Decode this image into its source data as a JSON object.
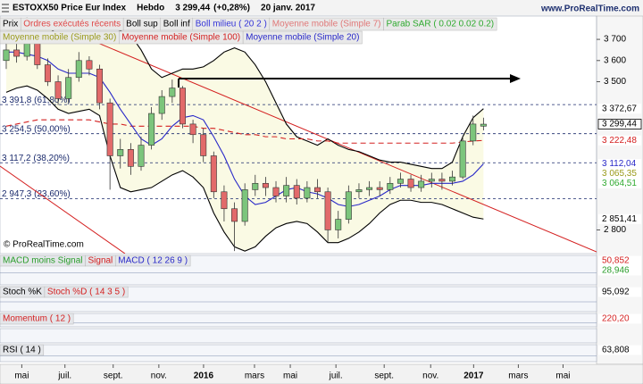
{
  "header": {
    "title": "ESTOXX50 Price Eur Index",
    "period": "Hebdo",
    "last": "3 299,44",
    "change": "(+0,28%)",
    "date": "20 janv. 2017",
    "site": "www.ProRealTime.com",
    "copyright": "© ProRealTime.com"
  },
  "chart_data": {
    "type": "candlestick",
    "open": [
      3600,
      3650,
      3620,
      3680,
      3580,
      3500,
      3420,
      3520,
      3600,
      3560,
      3400,
      3150,
      3180,
      3100,
      3200,
      3350,
      3430,
      3470,
      3300,
      3250,
      3150,
      2980,
      2900,
      2840,
      2990,
      3020,
      3000,
      2960,
      3010,
      2950,
      3000,
      2980,
      2800,
      2850,
      2980,
      2990,
      3000,
      2990,
      3020,
      3040,
      3000,
      3030,
      3040,
      3030,
      3050,
      3220,
      3290
    ],
    "high": [
      3690,
      3700,
      3720,
      3700,
      3610,
      3530,
      3560,
      3640,
      3620,
      3580,
      3420,
      3230,
      3210,
      3240,
      3380,
      3460,
      3510,
      3480,
      3320,
      3280,
      3170,
      3010,
      2930,
      3020,
      3060,
      3050,
      3030,
      3050,
      3040,
      3030,
      3040,
      3000,
      2890,
      3010,
      3020,
      3030,
      3030,
      3050,
      3070,
      3060,
      3060,
      3070,
      3070,
      3080,
      3240,
      3340,
      3330
    ],
    "low": [
      3560,
      3590,
      3600,
      3560,
      3480,
      3390,
      3400,
      3500,
      3530,
      3370,
      2990,
      3090,
      3060,
      3080,
      3180,
      3320,
      3400,
      3280,
      3210,
      3120,
      2950,
      2840,
      2700,
      2820,
      2960,
      2960,
      2930,
      2930,
      2920,
      2930,
      2950,
      2740,
      2760,
      2830,
      2950,
      2960,
      2960,
      2970,
      3000,
      2980,
      2980,
      3000,
      2990,
      3010,
      3040,
      3200,
      3270
    ],
    "close": [
      3650,
      3620,
      3680,
      3580,
      3500,
      3420,
      3520,
      3600,
      3560,
      3400,
      3150,
      3180,
      3100,
      3200,
      3350,
      3430,
      3470,
      3300,
      3250,
      3150,
      2980,
      2900,
      2840,
      2990,
      3020,
      3000,
      2960,
      3010,
      2950,
      3000,
      2980,
      2800,
      2850,
      2980,
      2990,
      3000,
      2990,
      3020,
      3040,
      3000,
      3030,
      3040,
      3030,
      3050,
      3220,
      3300,
      3299.44
    ],
    "up_color": "#7cc57c",
    "down_color": "#e26a6a",
    "series": [
      {
        "name": "Prix",
        "color": "#000000"
      },
      {
        "name": "Ordres exécutés récents",
        "color": "#e04848"
      },
      {
        "name": "Boll sup",
        "color": "#000000",
        "values": [
          3780,
          3790,
          3800,
          3790,
          3760,
          3720,
          3700,
          3700,
          3690,
          3700,
          3720,
          3740,
          3720,
          3650,
          3560,
          3520,
          3540,
          3560,
          3560,
          3570,
          3600,
          3640,
          3660,
          3640,
          3580,
          3500,
          3400,
          3300,
          3240,
          3220,
          3200,
          3230,
          3200,
          3180,
          3170,
          3150,
          3130,
          3120,
          3120,
          3110,
          3100,
          3090,
          3090,
          3120,
          3240,
          3330,
          3372.67
        ]
      },
      {
        "name": "Boll inf",
        "color": "#000000",
        "values": [
          3450,
          3470,
          3480,
          3460,
          3420,
          3370,
          3350,
          3360,
          3370,
          3340,
          3150,
          3000,
          2980,
          2990,
          3000,
          3030,
          3060,
          3080,
          3050,
          3000,
          2880,
          2790,
          2720,
          2700,
          2720,
          2770,
          2810,
          2830,
          2840,
          2830,
          2790,
          2740,
          2740,
          2760,
          2790,
          2830,
          2880,
          2920,
          2940,
          2940,
          2930,
          2930,
          2920,
          2900,
          2880,
          2860,
          2851.41
        ]
      },
      {
        "name": "Boll milieu ( 20 2 )",
        "color": "#3434d8"
      },
      {
        "name": "Moyenne mobile (Simple 7)",
        "color": "#e07878"
      },
      {
        "name": "Parab SAR ( 0.02 0.02 0.2)",
        "color": "#2faa2f"
      },
      {
        "name": "Moyenne mobile (Simple 30)",
        "color": "#9a9a1a"
      },
      {
        "name": "Moyenne mobile (Simple 100)",
        "color": "#d42020",
        "dashed": true,
        "values": [
          3290,
          3300,
          3310,
          3320,
          3320,
          3320,
          3320,
          3320,
          3320,
          3310,
          3300,
          3300,
          3290,
          3290,
          3290,
          3290,
          3290,
          3290,
          3290,
          3280,
          3280,
          3270,
          3260,
          3250,
          3250,
          3240,
          3240,
          3230,
          3230,
          3230,
          3220,
          3220,
          3210,
          3210,
          3210,
          3210,
          3210,
          3210,
          3210,
          3210,
          3210,
          3210,
          3210,
          3210,
          3215,
          3220,
          3222.48
        ]
      },
      {
        "name": "Moyenne mobile (Simple 20)",
        "color": "#2828c8",
        "values": [
          3640,
          3640,
          3630,
          3620,
          3600,
          3560,
          3540,
          3540,
          3540,
          3520,
          3450,
          3370,
          3300,
          3230,
          3200,
          3230,
          3290,
          3330,
          3340,
          3320,
          3240,
          3150,
          3040,
          2960,
          2920,
          2930,
          2960,
          2990,
          3000,
          2980,
          2970,
          2950,
          2920,
          2910,
          2920,
          2940,
          2960,
          2990,
          3010,
          3010,
          3010,
          3020,
          3020,
          3020,
          3030,
          3060,
          3112.04
        ]
      }
    ],
    "xlim": [
      -0.6,
      56.9
    ],
    "xticks": [
      {
        "value": 1.5,
        "label": "mai"
      },
      {
        "value": 5.66,
        "label": "juil."
      },
      {
        "value": 10.31,
        "label": "sept."
      },
      {
        "value": 14.71,
        "label": "nov."
      },
      {
        "value": 19.02,
        "label": "2016"
      },
      {
        "value": 23.93,
        "label": "mars"
      },
      {
        "value": 27.38,
        "label": "mai"
      },
      {
        "value": 31.78,
        "label": "juil."
      },
      {
        "value": 36.43,
        "label": "sept."
      },
      {
        "value": 40.91,
        "label": "nov."
      },
      {
        "value": 45.05,
        "label": "2017"
      },
      {
        "value": 49.36,
        "label": "mars"
      },
      {
        "value": 53.67,
        "label": "mai"
      }
    ],
    "ylim": [
      2688,
      3810
    ],
    "yticks": [
      {
        "value": 3700,
        "label": "3 700"
      },
      {
        "value": 3600,
        "label": "3 600"
      },
      {
        "value": 3500,
        "label": "3 500"
      },
      {
        "value": 2800,
        "label": "2 800"
      }
    ],
    "levels": [
      {
        "value": 3391.8,
        "label": "3 391,8 (61,80%)"
      },
      {
        "value": 3254.5,
        "label": "3 254,5 (50,00%)"
      },
      {
        "value": 3117.2,
        "label": "3 117,2 (38,20%)"
      },
      {
        "value": 2947.3,
        "label": "2 947,3 (23,60%)"
      }
    ],
    "markers": [
      {
        "value": 3372.67,
        "label": "3 372,67",
        "color": "#000000"
      },
      {
        "value": 3299.44,
        "label": "3 299,44",
        "color": "#000000",
        "boxed": true
      },
      {
        "value": 3222.48,
        "label": "3 222,48",
        "color": "#d42020"
      },
      {
        "value": 3112.04,
        "label": "3 112,04",
        "color": "#2828c8"
      },
      {
        "value": 3065.35,
        "label": "3 065,35",
        "color": "#9a9a1a"
      },
      {
        "value": 3064.51,
        "label": "3 064,51",
        "color": "#2faa2f"
      },
      {
        "value": 2851.41,
        "label": "2 851,41",
        "color": "#000000"
      }
    ]
  },
  "panels": [
    {
      "labels": [
        {
          "text": "MACD moins Signal",
          "color": "#2a9d2a"
        },
        {
          "text": "Signal",
          "color": "#d42020"
        },
        {
          "text": "MACD ( 12 26 9 )",
          "color": "#2828c8"
        }
      ],
      "readouts": [
        {
          "text": "50,852",
          "color": "#d42020"
        },
        {
          "text": "28,946",
          "color": "#2a9d2a"
        }
      ]
    },
    {
      "labels": [
        {
          "text": "Stoch %K",
          "color": "#000000"
        },
        {
          "text": "Stoch %D ( 14 3 5 )",
          "color": "#d42020"
        }
      ],
      "readouts": [
        {
          "text": "95,092",
          "color": "#000000"
        }
      ]
    },
    {
      "labels": [
        {
          "text": "Momentum ( 12 )",
          "color": "#d42020"
        }
      ],
      "readouts": [
        {
          "text": "220,20",
          "color": "#d42020"
        }
      ]
    },
    {
      "labels": [
        {
          "text": "RSI ( 14 )",
          "color": "#000000"
        }
      ],
      "readouts": [
        {
          "text": "63,808",
          "color": "#000000"
        }
      ]
    }
  ]
}
